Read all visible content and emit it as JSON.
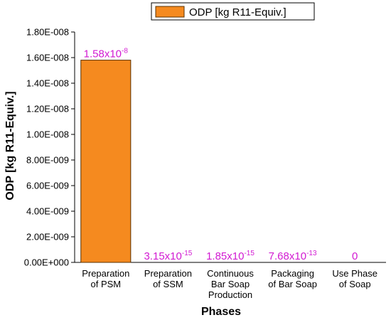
{
  "chart_data": {
    "type": "bar",
    "categories": [
      [
        "Preparation",
        "of PSM"
      ],
      [
        "Preparation",
        "of SSM"
      ],
      [
        "Continuous",
        "Bar Soap",
        "Production"
      ],
      [
        "Packaging",
        "of Bar Soap"
      ],
      [
        "Use Phase",
        "of Soap"
      ]
    ],
    "series": [
      {
        "name": "ODP [kg R11-Equiv.]",
        "values": [
          1.58e-08,
          3.15e-15,
          1.85e-15,
          7.68e-13,
          0
        ],
        "data_labels": [
          {
            "mantissa": "1.58x10",
            "exp": "-8"
          },
          {
            "mantissa": "3.15x10",
            "exp": "-15"
          },
          {
            "mantissa": "1.85x10",
            "exp": "-15"
          },
          {
            "mantissa": "7.68x10",
            "exp": "-13"
          },
          {
            "mantissa": "0",
            "exp": ""
          }
        ]
      }
    ],
    "xlabel": "Phases",
    "ylabel": "ODP [kg R11-Equiv.]",
    "ylim": [
      0,
      1.8e-08
    ],
    "yticks": [
      0,
      2e-09,
      4e-09,
      6e-09,
      8e-09,
      1e-08,
      1.2e-08,
      1.4e-08,
      1.6e-08,
      1.8e-08
    ],
    "ytick_labels": [
      "0.00E+000",
      "2.00E-009",
      "4.00E-009",
      "6.00E-009",
      "8.00E-009",
      "1.00E-008",
      "1.20E-008",
      "1.40E-008",
      "1.60E-008",
      "1.80E-008"
    ],
    "legend_position": "top",
    "grid": false,
    "colors": {
      "bar_fill": "#f58a1f",
      "bar_stroke": "#5a3000",
      "data_label": "#d21ad2"
    }
  }
}
